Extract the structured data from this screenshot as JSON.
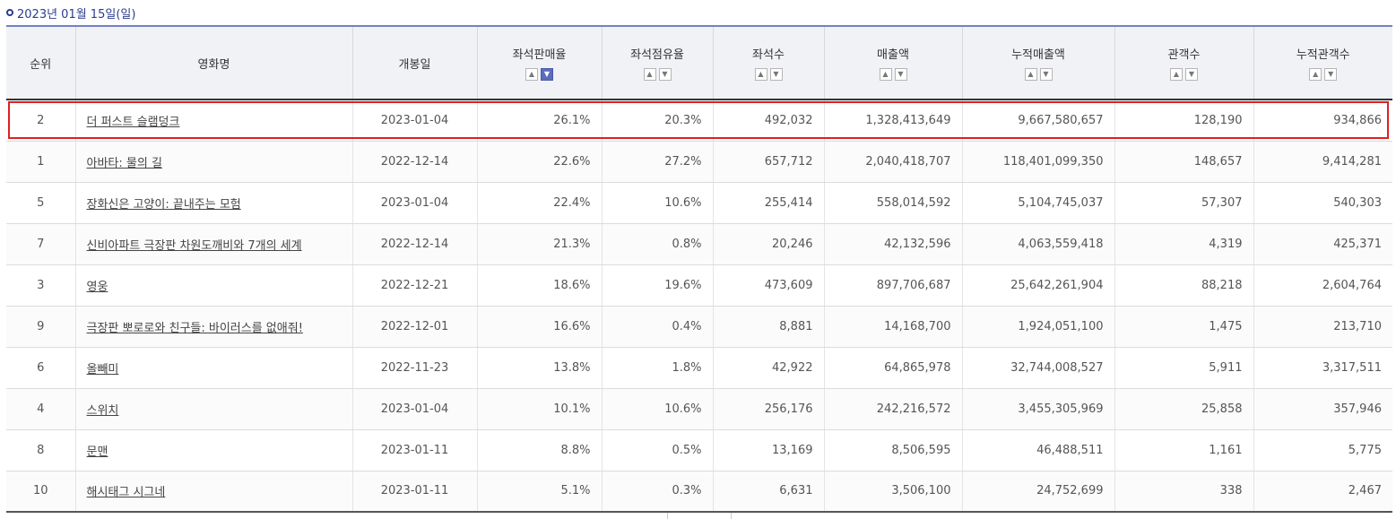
{
  "date_label": "2023년 01월 15일(일)",
  "columns": [
    {
      "label": "순위",
      "sortable": false
    },
    {
      "label": "영화명",
      "sortable": false
    },
    {
      "label": "개봉일",
      "sortable": false
    },
    {
      "label": "좌석판매율",
      "sortable": true,
      "active": "down"
    },
    {
      "label": "좌석점유율",
      "sortable": true
    },
    {
      "label": "좌석수",
      "sortable": true
    },
    {
      "label": "매출액",
      "sortable": true
    },
    {
      "label": "누적매출액",
      "sortable": true
    },
    {
      "label": "관객수",
      "sortable": true
    },
    {
      "label": "누적관객수",
      "sortable": true
    }
  ],
  "rows": [
    {
      "rank": "2",
      "title": "더 퍼스트 슬램덩크",
      "release": "2023-01-04",
      "seat_sales_rate": "26.1%",
      "seat_share": "20.3%",
      "seats": "492,032",
      "sales": "1,328,413,649",
      "cum_sales": "9,667,580,657",
      "audience": "128,190",
      "cum_audience": "934,866",
      "highlighted": true
    },
    {
      "rank": "1",
      "title": "아바타: 물의 길",
      "release": "2022-12-14",
      "seat_sales_rate": "22.6%",
      "seat_share": "27.2%",
      "seats": "657,712",
      "sales": "2,040,418,707",
      "cum_sales": "118,401,099,350",
      "audience": "148,657",
      "cum_audience": "9,414,281"
    },
    {
      "rank": "5",
      "title": "장화신은 고양이: 끝내주는 모험",
      "release": "2023-01-04",
      "seat_sales_rate": "22.4%",
      "seat_share": "10.6%",
      "seats": "255,414",
      "sales": "558,014,592",
      "cum_sales": "5,104,745,037",
      "audience": "57,307",
      "cum_audience": "540,303"
    },
    {
      "rank": "7",
      "title": "신비아파트 극장판 차원도깨비와 7개의 세계",
      "release": "2022-12-14",
      "seat_sales_rate": "21.3%",
      "seat_share": "0.8%",
      "seats": "20,246",
      "sales": "42,132,596",
      "cum_sales": "4,063,559,418",
      "audience": "4,319",
      "cum_audience": "425,371"
    },
    {
      "rank": "3",
      "title": "영웅",
      "release": "2022-12-21",
      "seat_sales_rate": "18.6%",
      "seat_share": "19.6%",
      "seats": "473,609",
      "sales": "897,706,687",
      "cum_sales": "25,642,261,904",
      "audience": "88,218",
      "cum_audience": "2,604,764"
    },
    {
      "rank": "9",
      "title": "극장판 뽀로로와 친구들: 바이러스를 없애줘!",
      "release": "2022-12-01",
      "seat_sales_rate": "16.6%",
      "seat_share": "0.4%",
      "seats": "8,881",
      "sales": "14,168,700",
      "cum_sales": "1,924,051,100",
      "audience": "1,475",
      "cum_audience": "213,710"
    },
    {
      "rank": "6",
      "title": "올빼미",
      "release": "2022-11-23",
      "seat_sales_rate": "13.8%",
      "seat_share": "1.8%",
      "seats": "42,922",
      "sales": "64,865,978",
      "cum_sales": "32,744,008,527",
      "audience": "5,911",
      "cum_audience": "3,317,511"
    },
    {
      "rank": "4",
      "title": "스위치",
      "release": "2023-01-04",
      "seat_sales_rate": "10.1%",
      "seat_share": "10.6%",
      "seats": "256,176",
      "sales": "242,216,572",
      "cum_sales": "3,455,305,969",
      "audience": "25,858",
      "cum_audience": "357,946"
    },
    {
      "rank": "8",
      "title": "문맨",
      "release": "2023-01-11",
      "seat_sales_rate": "8.8%",
      "seat_share": "0.5%",
      "seats": "13,169",
      "sales": "8,506,595",
      "cum_sales": "46,488,511",
      "audience": "1,161",
      "cum_audience": "5,775"
    },
    {
      "rank": "10",
      "title": "해시태그 시그네",
      "release": "2023-01-11",
      "seat_sales_rate": "5.1%",
      "seat_share": "0.3%",
      "seats": "6,631",
      "sales": "3,506,100",
      "cum_sales": "24,752,699",
      "audience": "338",
      "cum_audience": "2,467"
    }
  ],
  "icons": {
    "sort_up": "caret-up-icon",
    "sort_down": "caret-down-icon",
    "date_bullet": "circle-bullet-icon"
  },
  "colors": {
    "accent": "#2a3d8f",
    "active_sort": "#5d6dbd",
    "highlight": "#e02020",
    "header_bg": "#f1f2f6"
  }
}
